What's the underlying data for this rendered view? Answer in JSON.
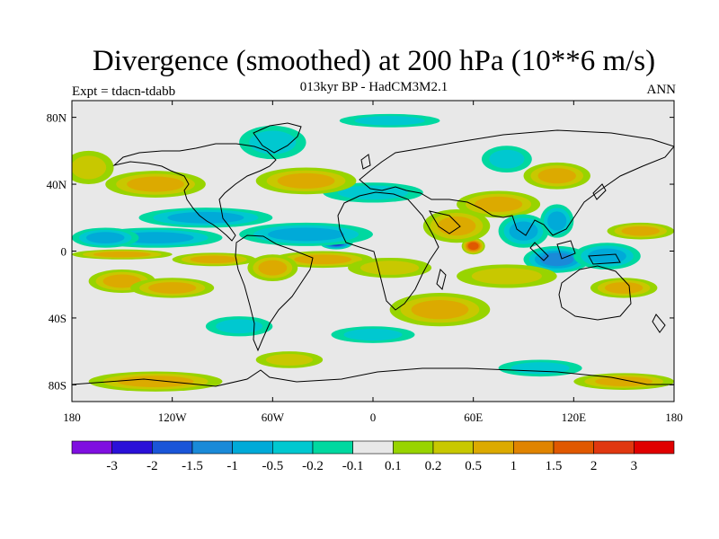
{
  "title": "Divergence (smoothed) at 200 hPa (10**6 m/s)",
  "subtitle": "013kyr BP - HadCM3M2.1",
  "experiment": "Expt = tdacn-tdabb",
  "period": "ANN",
  "map": {
    "projection": "cylindrical equidistant",
    "lon_range": [
      -180,
      180
    ],
    "lat_range": [
      -90,
      90
    ],
    "x_ticks": [
      {
        "value": -180,
        "label": "180"
      },
      {
        "value": -120,
        "label": "120W"
      },
      {
        "value": -60,
        "label": "60W"
      },
      {
        "value": 0,
        "label": "0"
      },
      {
        "value": 60,
        "label": "60E"
      },
      {
        "value": 120,
        "label": "120E"
      },
      {
        "value": 180,
        "label": "180"
      }
    ],
    "y_ticks": [
      {
        "value": 80,
        "label": "80N"
      },
      {
        "value": 40,
        "label": "40N"
      },
      {
        "value": 0,
        "label": "0"
      },
      {
        "value": -40,
        "label": "40S"
      },
      {
        "value": -80,
        "label": "80S"
      }
    ],
    "background_color": "#e8e8e8"
  },
  "colorbar": {
    "colors": [
      "#7f0fe0",
      "#2a10d8",
      "#1a55d8",
      "#1a8ad8",
      "#00aad8",
      "#00c8d0",
      "#00d8a0",
      "#e8e8e8",
      "#98d400",
      "#c8c800",
      "#dcaa00",
      "#e08400",
      "#e05800",
      "#e03810",
      "#e00000"
    ],
    "labels": [
      "-3",
      "-2",
      "-1.5",
      "-1",
      "-0.5",
      "-0.2",
      "-0.1",
      "0.1",
      "0.2",
      "0.5",
      "1",
      "1.5",
      "2",
      "3"
    ]
  },
  "chart_data": {
    "type": "heatmap",
    "title": "Divergence (smoothed) at 200 hPa (10**6 m/s)",
    "subtitle": "013kyr BP - HadCM3M2.1",
    "experiment": "Expt = tdacn-tdabb",
    "period": "ANN",
    "units": "10**6 m/s",
    "x_axis": {
      "range": [
        -180,
        180
      ],
      "ticks": [
        "180",
        "120W",
        "60W",
        "0",
        "60E",
        "120E",
        "180"
      ]
    },
    "y_axis": {
      "range": [
        -90,
        90
      ],
      "ticks": [
        "80N",
        "40N",
        "0",
        "40S",
        "80S"
      ]
    },
    "contour_levels": [
      -3,
      -2,
      -1.5,
      -1,
      -0.5,
      -0.2,
      -0.1,
      0.1,
      0.2,
      0.5,
      1,
      1.5,
      2,
      3
    ],
    "features": [
      {
        "lon": -130,
        "lat": 8,
        "value": -0.8,
        "rx": 40,
        "ry": 6
      },
      {
        "lon": -160,
        "lat": 8,
        "value": -0.5,
        "rx": 20,
        "ry": 6
      },
      {
        "lon": -22,
        "lat": 5,
        "value": -2.5,
        "rx": 10,
        "ry": 4
      },
      {
        "lon": -40,
        "lat": 10,
        "value": -0.7,
        "rx": 40,
        "ry": 7
      },
      {
        "lon": -100,
        "lat": 20,
        "value": -0.5,
        "rx": 40,
        "ry": 6
      },
      {
        "lon": -150,
        "lat": -2,
        "value": 0.6,
        "rx": 30,
        "ry": 3
      },
      {
        "lon": -95,
        "lat": -5,
        "value": 0.6,
        "rx": 25,
        "ry": 4
      },
      {
        "lon": -30,
        "lat": -5,
        "value": 0.5,
        "rx": 30,
        "ry": 5
      },
      {
        "lon": 10,
        "lat": -10,
        "value": 0.3,
        "rx": 25,
        "ry": 6
      },
      {
        "lon": -150,
        "lat": -18,
        "value": 0.8,
        "rx": 20,
        "ry": 7
      },
      {
        "lon": -120,
        "lat": -22,
        "value": 0.5,
        "rx": 25,
        "ry": 6
      },
      {
        "lon": -60,
        "lat": -10,
        "value": 0.8,
        "rx": 15,
        "ry": 8
      },
      {
        "lon": 60,
        "lat": 3,
        "value": 1.8,
        "rx": 7,
        "ry": 5
      },
      {
        "lon": 50,
        "lat": 15,
        "value": 0.7,
        "rx": 20,
        "ry": 10
      },
      {
        "lon": 75,
        "lat": 28,
        "value": 0.5,
        "rx": 25,
        "ry": 8
      },
      {
        "lon": 90,
        "lat": 12,
        "value": -0.6,
        "rx": 15,
        "ry": 10
      },
      {
        "lon": 110,
        "lat": 18,
        "value": -0.5,
        "rx": 10,
        "ry": 10
      },
      {
        "lon": 110,
        "lat": -5,
        "value": -1.2,
        "rx": 20,
        "ry": 8
      },
      {
        "lon": 140,
        "lat": -3,
        "value": -0.8,
        "rx": 20,
        "ry": 8
      },
      {
        "lon": 160,
        "lat": 12,
        "value": 0.5,
        "rx": 20,
        "ry": 5
      },
      {
        "lon": 150,
        "lat": -22,
        "value": 0.7,
        "rx": 20,
        "ry": 6
      },
      {
        "lon": 80,
        "lat": -15,
        "value": 0.4,
        "rx": 30,
        "ry": 7
      },
      {
        "lon": 40,
        "lat": -35,
        "value": 0.5,
        "rx": 30,
        "ry": 10
      },
      {
        "lon": 0,
        "lat": 35,
        "value": -0.4,
        "rx": 30,
        "ry": 6
      },
      {
        "lon": -130,
        "lat": 40,
        "value": 0.5,
        "rx": 30,
        "ry": 8
      },
      {
        "lon": -170,
        "lat": 50,
        "value": 0.4,
        "rx": 15,
        "ry": 10
      },
      {
        "lon": -40,
        "lat": 42,
        "value": 0.6,
        "rx": 30,
        "ry": 8
      },
      {
        "lon": -60,
        "lat": 65,
        "value": -0.4,
        "rx": 20,
        "ry": 10
      },
      {
        "lon": 10,
        "lat": 78,
        "value": -0.3,
        "rx": 30,
        "ry": 4
      },
      {
        "lon": 110,
        "lat": 45,
        "value": 0.5,
        "rx": 20,
        "ry": 8
      },
      {
        "lon": 80,
        "lat": 55,
        "value": -0.4,
        "rx": 15,
        "ry": 8
      },
      {
        "lon": -80,
        "lat": -45,
        "value": -0.4,
        "rx": 20,
        "ry": 6
      },
      {
        "lon": 0,
        "lat": -50,
        "value": -0.3,
        "rx": 25,
        "ry": 5
      },
      {
        "lon": -130,
        "lat": -78,
        "value": 0.5,
        "rx": 40,
        "ry": 6
      },
      {
        "lon": 150,
        "lat": -78,
        "value": 0.5,
        "rx": 30,
        "ry": 5
      },
      {
        "lon": 100,
        "lat": -70,
        "value": -0.3,
        "rx": 25,
        "ry": 5
      },
      {
        "lon": -50,
        "lat": -65,
        "value": 0.3,
        "rx": 20,
        "ry": 5
      }
    ]
  }
}
